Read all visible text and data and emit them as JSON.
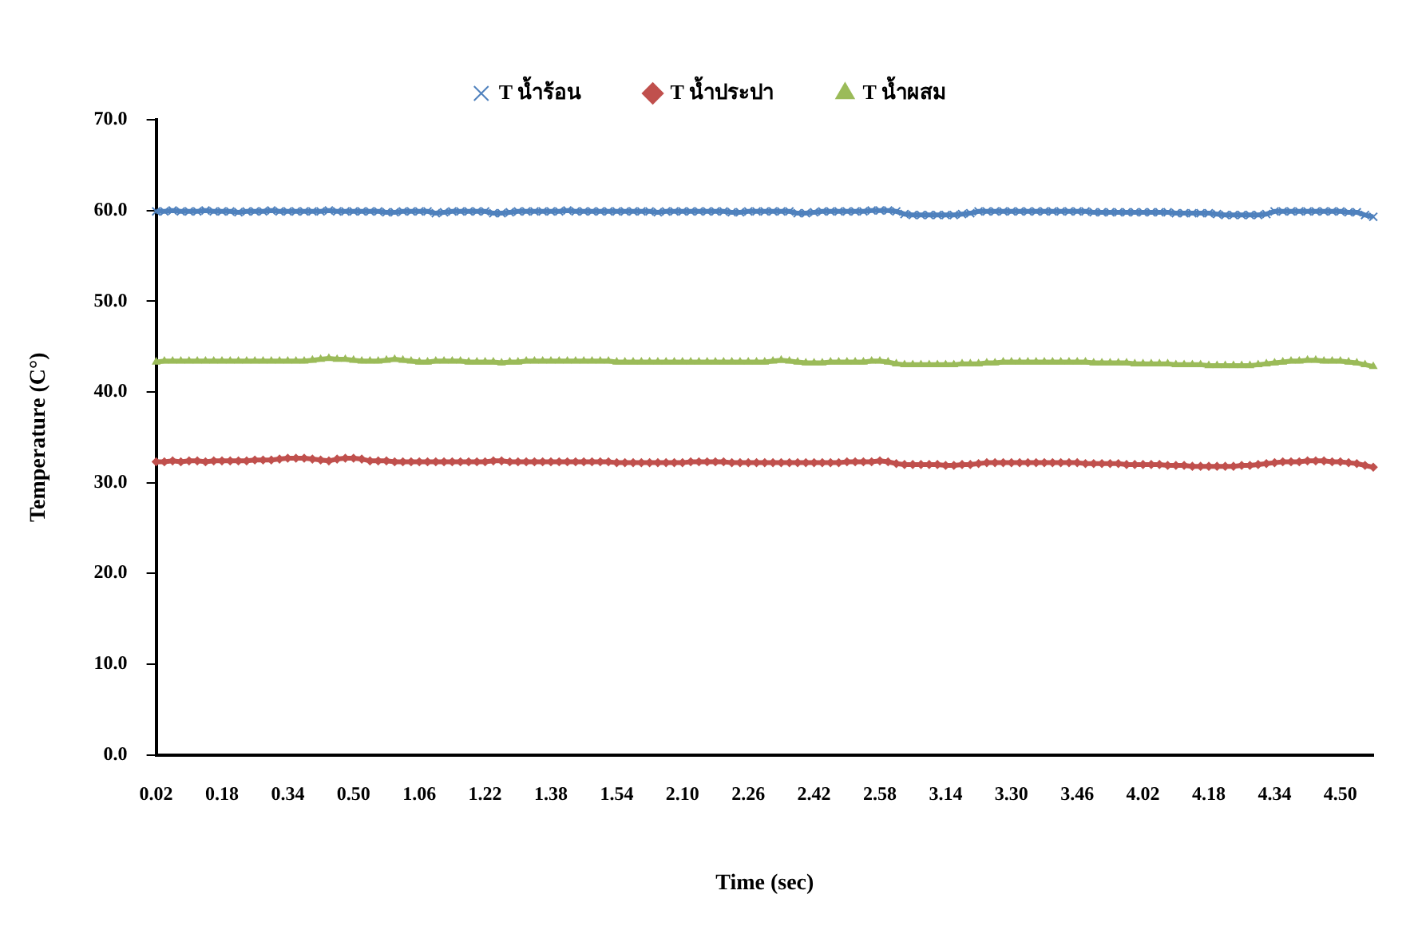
{
  "chart_data": {
    "type": "line",
    "xlabel": "Time (sec)",
    "ylabel": "Temperature (C°)",
    "legend": "top",
    "line_style": "solid",
    "categories": [
      "0.02",
      null,
      null,
      null,
      null,
      null,
      null,
      null,
      "0.18",
      null,
      null,
      null,
      null,
      null,
      null,
      null,
      "0.34",
      null,
      null,
      null,
      null,
      null,
      null,
      null,
      "0.50",
      null,
      null,
      null,
      null,
      null,
      null,
      null,
      "1.06",
      null,
      null,
      null,
      null,
      null,
      null,
      null,
      "1.22",
      null,
      null,
      null,
      null,
      null,
      null,
      null,
      "1.38",
      null,
      null,
      null,
      null,
      null,
      null,
      null,
      "1.54",
      null,
      null,
      null,
      null,
      null,
      null,
      null,
      "2.10",
      null,
      null,
      null,
      null,
      null,
      null,
      null,
      "2.26",
      null,
      null,
      null,
      null,
      null,
      null,
      null,
      "2.42",
      null,
      null,
      null,
      null,
      null,
      null,
      null,
      "2.58",
      null,
      null,
      null,
      null,
      null,
      null,
      null,
      "3.14",
      null,
      null,
      null,
      null,
      null,
      null,
      null,
      "3.30",
      null,
      null,
      null,
      null,
      null,
      null,
      null,
      "3.46",
      null,
      null,
      null,
      null,
      null,
      null,
      null,
      "4.02",
      null,
      null,
      null,
      null,
      null,
      null,
      null,
      "4.18",
      null,
      null,
      null,
      null,
      null,
      null,
      null,
      "4.34",
      null,
      null,
      null,
      null,
      null,
      null,
      null,
      "4.50",
      null,
      null,
      null,
      null
    ],
    "ylim": [
      0,
      70
    ],
    "yticks": [
      {
        "value": 0,
        "label": "0.0"
      },
      {
        "value": 10,
        "label": "10.0"
      },
      {
        "value": 20,
        "label": "20.0"
      },
      {
        "value": 30,
        "label": "30.0"
      },
      {
        "value": 40,
        "label": "40.0"
      },
      {
        "value": 50,
        "label": "50.0"
      },
      {
        "value": 60,
        "label": "60.0"
      },
      {
        "value": 70,
        "label": "70.0"
      }
    ],
    "series": [
      {
        "name": "T น้ำร้อน",
        "color": "#4f81bd",
        "marker": "cross",
        "values": [
          59.9,
          59.9,
          60.0,
          59.9,
          59.9,
          59.9,
          60.0,
          59.9,
          59.9,
          59.9,
          59.8,
          59.9,
          59.9,
          59.9,
          60.0,
          59.9,
          59.9,
          59.9,
          59.9,
          59.9,
          59.9,
          60.0,
          59.9,
          59.9,
          59.9,
          59.9,
          59.9,
          59.9,
          59.8,
          59.8,
          59.9,
          59.9,
          59.9,
          59.9,
          59.7,
          59.8,
          59.9,
          59.9,
          59.9,
          59.9,
          59.9,
          59.7,
          59.7,
          59.8,
          59.9,
          59.9,
          59.9,
          59.9,
          59.9,
          59.9,
          60.0,
          59.9,
          59.9,
          59.9,
          59.9,
          59.9,
          59.9,
          59.9,
          59.9,
          59.9,
          59.9,
          59.8,
          59.9,
          59.9,
          59.9,
          59.9,
          59.9,
          59.9,
          59.9,
          59.9,
          59.8,
          59.8,
          59.9,
          59.9,
          59.9,
          59.9,
          59.9,
          59.9,
          59.7,
          59.7,
          59.8,
          59.9,
          59.9,
          59.9,
          59.9,
          59.9,
          59.9,
          60.0,
          60.0,
          60.0,
          59.9,
          59.6,
          59.5,
          59.5,
          59.5,
          59.5,
          59.5,
          59.5,
          59.6,
          59.7,
          59.9,
          59.9,
          59.9,
          59.9,
          59.9,
          59.9,
          59.9,
          59.9,
          59.9,
          59.9,
          59.9,
          59.9,
          59.9,
          59.9,
          59.8,
          59.8,
          59.8,
          59.8,
          59.8,
          59.8,
          59.8,
          59.8,
          59.8,
          59.8,
          59.7,
          59.7,
          59.7,
          59.7,
          59.7,
          59.6,
          59.5,
          59.5,
          59.5,
          59.5,
          59.5,
          59.6,
          59.9,
          59.9,
          59.9,
          59.9,
          59.9,
          59.9,
          59.9,
          59.9,
          59.9,
          59.8,
          59.8,
          59.5,
          59.3
        ]
      },
      {
        "name": "T น้ำประปา",
        "color": "#c0504d",
        "marker": "diamond",
        "values": [
          32.3,
          32.3,
          32.4,
          32.3,
          32.4,
          32.4,
          32.3,
          32.4,
          32.4,
          32.4,
          32.4,
          32.4,
          32.5,
          32.5,
          32.5,
          32.6,
          32.7,
          32.7,
          32.7,
          32.6,
          32.5,
          32.4,
          32.6,
          32.7,
          32.7,
          32.6,
          32.4,
          32.4,
          32.4,
          32.3,
          32.3,
          32.3,
          32.3,
          32.3,
          32.3,
          32.3,
          32.3,
          32.3,
          32.3,
          32.3,
          32.3,
          32.4,
          32.4,
          32.3,
          32.3,
          32.3,
          32.3,
          32.3,
          32.3,
          32.3,
          32.3,
          32.3,
          32.3,
          32.3,
          32.3,
          32.3,
          32.2,
          32.2,
          32.2,
          32.2,
          32.2,
          32.2,
          32.2,
          32.2,
          32.2,
          32.3,
          32.3,
          32.3,
          32.3,
          32.3,
          32.2,
          32.2,
          32.2,
          32.2,
          32.2,
          32.2,
          32.2,
          32.2,
          32.2,
          32.2,
          32.2,
          32.2,
          32.2,
          32.2,
          32.3,
          32.3,
          32.3,
          32.3,
          32.4,
          32.3,
          32.1,
          32.0,
          32.0,
          32.0,
          32.0,
          32.0,
          31.9,
          31.9,
          32.0,
          32.0,
          32.1,
          32.2,
          32.2,
          32.2,
          32.2,
          32.2,
          32.2,
          32.2,
          32.2,
          32.2,
          32.2,
          32.2,
          32.2,
          32.1,
          32.1,
          32.1,
          32.1,
          32.1,
          32.0,
          32.0,
          32.0,
          32.0,
          32.0,
          31.9,
          31.9,
          31.9,
          31.8,
          31.8,
          31.8,
          31.8,
          31.8,
          31.8,
          31.9,
          31.9,
          32.0,
          32.1,
          32.2,
          32.3,
          32.3,
          32.3,
          32.4,
          32.4,
          32.4,
          32.3,
          32.3,
          32.2,
          32.1,
          31.9,
          31.7
        ]
      },
      {
        "name": "T น้ำผสม",
        "color": "#9bbb59",
        "marker": "triangle",
        "values": [
          43.3,
          43.4,
          43.4,
          43.4,
          43.4,
          43.4,
          43.4,
          43.4,
          43.4,
          43.4,
          43.4,
          43.4,
          43.4,
          43.4,
          43.4,
          43.4,
          43.4,
          43.4,
          43.4,
          43.5,
          43.6,
          43.7,
          43.6,
          43.6,
          43.5,
          43.4,
          43.4,
          43.4,
          43.5,
          43.6,
          43.5,
          43.4,
          43.3,
          43.3,
          43.4,
          43.4,
          43.4,
          43.4,
          43.3,
          43.3,
          43.3,
          43.3,
          43.2,
          43.3,
          43.3,
          43.4,
          43.4,
          43.4,
          43.4,
          43.4,
          43.4,
          43.4,
          43.4,
          43.4,
          43.4,
          43.4,
          43.3,
          43.3,
          43.3,
          43.3,
          43.3,
          43.3,
          43.3,
          43.3,
          43.3,
          43.3,
          43.3,
          43.3,
          43.3,
          43.3,
          43.3,
          43.3,
          43.3,
          43.3,
          43.3,
          43.4,
          43.5,
          43.4,
          43.3,
          43.2,
          43.2,
          43.2,
          43.3,
          43.3,
          43.3,
          43.3,
          43.3,
          43.4,
          43.4,
          43.3,
          43.1,
          43.0,
          43.0,
          43.0,
          43.0,
          43.0,
          43.0,
          43.0,
          43.1,
          43.1,
          43.1,
          43.2,
          43.2,
          43.3,
          43.3,
          43.3,
          43.3,
          43.3,
          43.3,
          43.3,
          43.3,
          43.3,
          43.3,
          43.3,
          43.2,
          43.2,
          43.2,
          43.2,
          43.2,
          43.1,
          43.1,
          43.1,
          43.1,
          43.1,
          43.0,
          43.0,
          43.0,
          43.0,
          42.9,
          42.9,
          42.9,
          42.9,
          42.9,
          42.9,
          43.0,
          43.1,
          43.2,
          43.3,
          43.4,
          43.4,
          43.5,
          43.5,
          43.4,
          43.4,
          43.4,
          43.3,
          43.2,
          43.0,
          42.8
        ]
      }
    ]
  }
}
